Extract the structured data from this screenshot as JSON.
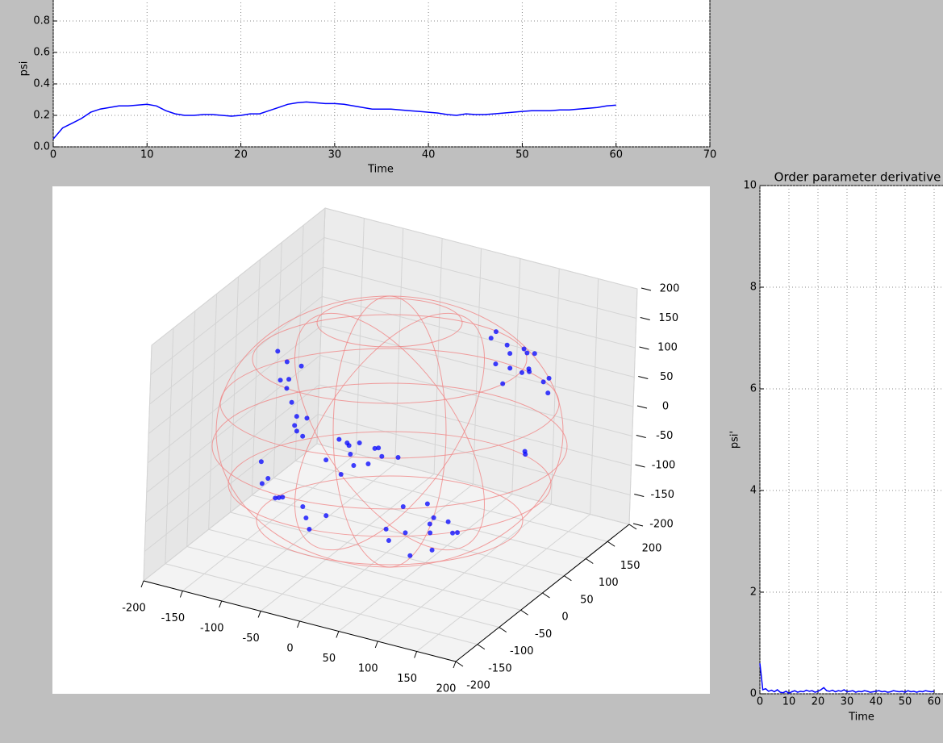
{
  "chart_data": [
    {
      "type": "line",
      "x_label": "Time",
      "y_label": "psi",
      "x": [
        0,
        1,
        2,
        3,
        4,
        5,
        6,
        7,
        8,
        9,
        10,
        11,
        12,
        13,
        14,
        15,
        16,
        17,
        18,
        19,
        20,
        21,
        22,
        23,
        24,
        25,
        26,
        27,
        28,
        29,
        30,
        31,
        32,
        33,
        34,
        35,
        36,
        37,
        38,
        39,
        40,
        41,
        42,
        43,
        44,
        45,
        46,
        47,
        48,
        49,
        50,
        51,
        52,
        53,
        54,
        55,
        56,
        57,
        58,
        59,
        60
      ],
      "series": [
        {
          "color": "#0000ff",
          "values": [
            0.05,
            0.12,
            0.15,
            0.18,
            0.22,
            0.24,
            0.25,
            0.26,
            0.26,
            0.265,
            0.27,
            0.26,
            0.23,
            0.21,
            0.2,
            0.2,
            0.205,
            0.205,
            0.2,
            0.195,
            0.2,
            0.21,
            0.21,
            0.23,
            0.25,
            0.27,
            0.28,
            0.285,
            0.28,
            0.275,
            0.275,
            0.27,
            0.26,
            0.25,
            0.24,
            0.24,
            0.24,
            0.235,
            0.23,
            0.225,
            0.22,
            0.215,
            0.205,
            0.2,
            0.21,
            0.205,
            0.205,
            0.21,
            0.215,
            0.22,
            0.225,
            0.23,
            0.23,
            0.23,
            0.235,
            0.235,
            0.24,
            0.245,
            0.25,
            0.26,
            0.265
          ]
        }
      ],
      "xlim": [
        0,
        70
      ],
      "xticks": [
        0,
        10,
        20,
        30,
        40,
        50,
        60,
        70
      ],
      "ylim": [
        0,
        1
      ],
      "yticks": [
        {
          "value": 0,
          "label": "0.0"
        },
        {
          "value": 0.2,
          "label": "0.2"
        },
        {
          "value": 0.4,
          "label": "0.4"
        },
        {
          "value": 0.6,
          "label": "0.6"
        },
        {
          "value": 0.8,
          "label": "0.8"
        }
      ],
      "grid": true
    },
    {
      "type": "scatter3d",
      "color": "#0000ff",
      "x": [
        80,
        100,
        120,
        90,
        110,
        130,
        70,
        100,
        140,
        60,
        115,
        95,
        125,
        85,
        150,
        -100,
        -110,
        -90,
        -105,
        -95,
        -115,
        -85,
        -100,
        -120,
        -90,
        -110,
        -80,
        -50,
        -60,
        -40,
        -30,
        -70,
        -20,
        -55,
        -45,
        -10,
        -65,
        -35,
        0,
        50,
        50,
        70,
        30,
        90,
        60,
        80,
        40,
        100,
        20,
        110,
        65,
        -100,
        -50,
        -80,
        -60,
        -120,
        -40,
        -90,
        -70,
        -30,
        -110,
        140,
        150,
        60,
        120,
        -20
      ],
      "y": [
        120,
        90,
        100,
        110,
        130,
        80,
        100,
        120,
        110,
        130,
        95,
        140,
        125,
        85,
        90,
        -50,
        -40,
        -60,
        -55,
        -45,
        -35,
        -65,
        -30,
        -50,
        -40,
        -60,
        -50,
        0,
        10,
        -10,
        20,
        -20,
        10,
        30,
        -30,
        0,
        0,
        15,
        20,
        0,
        -50,
        -30,
        -20,
        -60,
        -10,
        -40,
        -70,
        -20,
        -40,
        -50,
        -65,
        -100,
        -100,
        -110,
        -90,
        -80,
        -110,
        -100,
        -120,
        -90,
        -95,
        60,
        40,
        150,
        -80,
        -60
      ],
      "z": [
        110,
        120,
        90,
        80,
        100,
        110,
        130,
        70,
        80,
        120,
        130,
        90,
        60,
        100,
        70,
        50,
        80,
        20,
        120,
        0,
        60,
        40,
        100,
        130,
        -10,
        90,
        30,
        -50,
        -40,
        -60,
        -45,
        -55,
        -35,
        -50,
        -65,
        -40,
        -30,
        -70,
        -50,
        -100,
        -120,
        -110,
        -100,
        -130,
        -140,
        -90,
        -125,
        -120,
        -130,
        -100,
        -145,
        -50,
        -100,
        -70,
        -90,
        -40,
        -110,
        -80,
        -60,
        -95,
        -65,
        -20,
        0,
        20,
        -60,
        10
      ],
      "xlim": [
        -200,
        200
      ],
      "ylim": [
        -200,
        200
      ],
      "zlim": [
        -200,
        200
      ],
      "xticks": [
        -200,
        -150,
        -100,
        -50,
        0,
        50,
        100,
        150,
        200
      ],
      "yticks": [
        -200,
        -150,
        -100,
        -50,
        0,
        50,
        100,
        150,
        200
      ],
      "zticks": [
        -200,
        -150,
        -100,
        -50,
        0,
        50,
        100,
        150,
        200
      ]
    },
    {
      "type": "line",
      "title": "Order parameter derivative",
      "x_label": "Time",
      "y_label": "psi'",
      "x": [
        0,
        1,
        2,
        3,
        4,
        5,
        6,
        7,
        8,
        9,
        10,
        11,
        12,
        13,
        14,
        15,
        16,
        17,
        18,
        19,
        20,
        21,
        22,
        23,
        24,
        25,
        26,
        27,
        28,
        29,
        30,
        31,
        32,
        33,
        34,
        35,
        36,
        37,
        38,
        39,
        40,
        41,
        42,
        43,
        44,
        45,
        46,
        47,
        48,
        49,
        50,
        51,
        52,
        53,
        54,
        55,
        56,
        57,
        58,
        59,
        60
      ],
      "series": [
        {
          "color": "#0000ff",
          "values": [
            0.6,
            0.08,
            0.1,
            0.05,
            0.07,
            0.04,
            0.08,
            0.03,
            0.02,
            0.05,
            0.01,
            0.04,
            0.06,
            0.03,
            0.05,
            0.04,
            0.07,
            0.05,
            0.06,
            0.03,
            0.05,
            0.08,
            0.12,
            0.06,
            0.05,
            0.07,
            0.04,
            0.06,
            0.05,
            0.08,
            0.04,
            0.05,
            0.06,
            0.03,
            0.05,
            0.04,
            0.06,
            0.05,
            0.03,
            0.04,
            0.05,
            0.06,
            0.04,
            0.05,
            0.03,
            0.04,
            0.06,
            0.05,
            0.04,
            0.05,
            0.03,
            0.06,
            0.04,
            0.05,
            0.03,
            0.05,
            0.04,
            0.06,
            0.05,
            0.04,
            0.05
          ]
        }
      ],
      "xlim": [
        0,
        70
      ],
      "xticks": [
        0,
        10,
        20,
        30,
        40,
        50,
        60
      ],
      "ylim": [
        0,
        10
      ],
      "yticks": [
        0,
        2,
        4,
        6,
        8,
        10
      ],
      "grid": true
    }
  ]
}
